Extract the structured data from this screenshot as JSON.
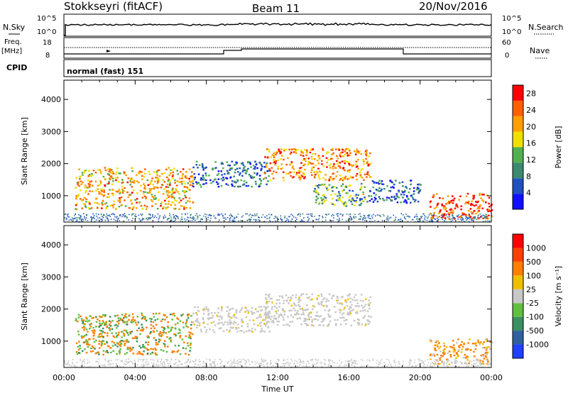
{
  "header": {
    "station": "Stokkseyri (fitACF)",
    "beam": "Beam 11",
    "date": "20/Nov/2016"
  },
  "status_panels": {
    "nsky_label": "N.Sky",
    "nsearch_label": "N.Search",
    "noise_ticks": [
      "10^5",
      "10^0"
    ],
    "freq_label": "Freq.",
    "freq_unit": "[MHz]",
    "freq_ticks": [
      "18",
      "8"
    ],
    "nave_label": "Nave",
    "nave_ticks": [
      "60",
      "0"
    ],
    "cpid_label": "CPID",
    "cpid_value": "normal (fast) 151"
  },
  "chart_data": [
    {
      "type": "heatmap",
      "title": "",
      "xlabel": "Time UT",
      "ylabel": "Slant Range [km]",
      "x_ticks": [
        "00:00",
        "04:00",
        "08:00",
        "12:00",
        "16:00",
        "20:00",
        "00:00"
      ],
      "xlim_hours": [
        0,
        24
      ],
      "y_ticks": [
        1000,
        2000,
        3000,
        4000
      ],
      "ylim": [
        180,
        4600
      ],
      "colorbar": {
        "label": "Power [dB]",
        "ticks": [
          4,
          8,
          12,
          16,
          20,
          24,
          28
        ],
        "range": [
          0,
          30
        ],
        "colors": [
          "#1010ff",
          "#2050c0",
          "#3a8a70",
          "#50b050",
          "#f0e000",
          "#ffa000",
          "#ff6000",
          "#ff0000"
        ]
      },
      "echo_regions": [
        {
          "t_start": 0.6,
          "t_end": 7.2,
          "r_min": 600,
          "r_max": 1900,
          "level": 20
        },
        {
          "t_start": 7.2,
          "t_end": 11.5,
          "r_min": 1300,
          "r_max": 2100,
          "level": 8
        },
        {
          "t_start": 11.2,
          "t_end": 17.2,
          "r_min": 1500,
          "r_max": 2500,
          "level": 22
        },
        {
          "t_start": 14.0,
          "t_end": 17.0,
          "r_min": 700,
          "r_max": 1400,
          "level": 12
        },
        {
          "t_start": 17.0,
          "t_end": 20.0,
          "r_min": 800,
          "r_max": 1500,
          "level": 6
        },
        {
          "t_start": 20.5,
          "t_end": 24.0,
          "r_min": 300,
          "r_max": 1100,
          "level": 26
        }
      ]
    },
    {
      "type": "heatmap",
      "title": "",
      "xlabel": "Time UT",
      "ylabel": "Slant Range [km]",
      "x_ticks": [
        "00:00",
        "04:00",
        "08:00",
        "12:00",
        "16:00",
        "20:00",
        "00:00"
      ],
      "xlim_hours": [
        0,
        24
      ],
      "y_ticks": [
        1000,
        2000,
        3000,
        4000
      ],
      "ylim": [
        180,
        4600
      ],
      "colorbar": {
        "label": "Velocity [m s⁻¹]",
        "ticks": [
          1000,
          500,
          100,
          25,
          -25,
          -100,
          -500,
          -1000
        ],
        "colors": [
          "#2040ff",
          "#3060a0",
          "#3a9060",
          "#60c040",
          "#c8c8c8",
          "#f0c000",
          "#ff8000",
          "#ff4000",
          "#ff0000"
        ]
      },
      "echo_regions": [
        {
          "t_start": 0.6,
          "t_end": 7.2,
          "r_min": 600,
          "r_max": 1900,
          "level": "mixed orange/green"
        },
        {
          "t_start": 7.2,
          "t_end": 11.5,
          "r_min": 1300,
          "r_max": 2100,
          "level": "grey"
        },
        {
          "t_start": 11.2,
          "t_end": 17.2,
          "r_min": 1500,
          "r_max": 2500,
          "level": "grey/orange"
        },
        {
          "t_start": 20.5,
          "t_end": 24.0,
          "r_min": 300,
          "r_max": 1100,
          "level": "orange"
        }
      ]
    }
  ]
}
